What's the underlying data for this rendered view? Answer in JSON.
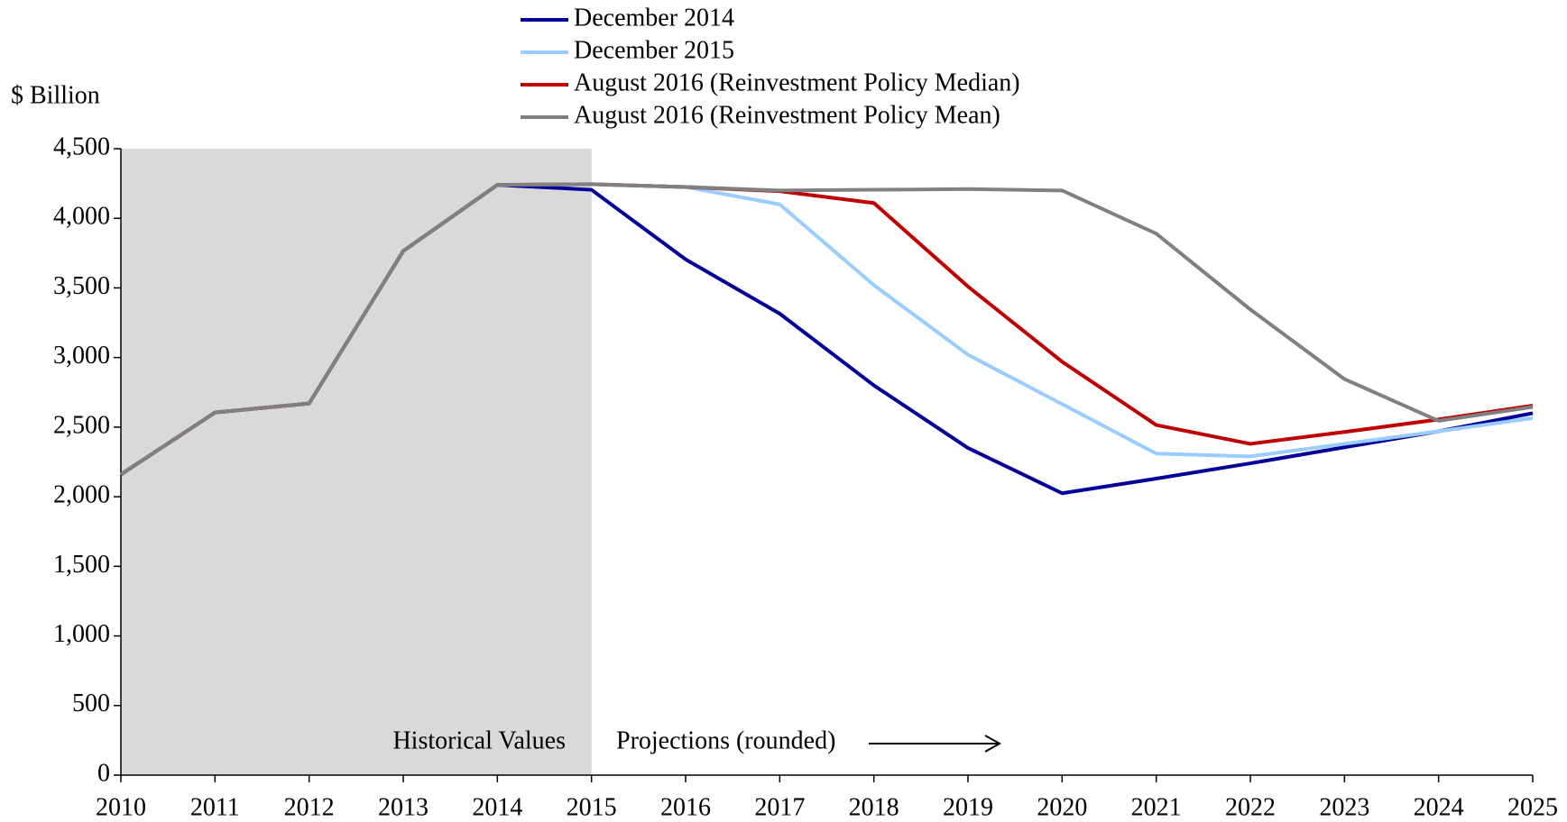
{
  "chart_data": {
    "type": "line",
    "y_label": "$ Billion",
    "annotations": [
      "Historical Values",
      "Projections (rounded)"
    ],
    "shaded_region": [
      2010,
      2015
    ],
    "x": [
      2010,
      2011,
      2012,
      2013,
      2014,
      2015,
      2016,
      2017,
      2018,
      2019,
      2020,
      2021,
      2022,
      2023,
      2024,
      2025
    ],
    "xlim": [
      2010,
      2025
    ],
    "xticks": [
      2010,
      2011,
      2012,
      2013,
      2014,
      2015,
      2016,
      2017,
      2018,
      2019,
      2020,
      2021,
      2022,
      2023,
      2024,
      2025
    ],
    "ylim": [
      0,
      4500
    ],
    "yticks": [
      0,
      500,
      {
        "value": 1000,
        "label": "1,000"
      },
      {
        "value": 1500,
        "label": "1,500"
      },
      {
        "value": 2000,
        "label": "2,000"
      },
      {
        "value": 2500,
        "label": "2,500"
      },
      {
        "value": 3000,
        "label": "3,000"
      },
      {
        "value": 3500,
        "label": "3,500"
      },
      {
        "value": 4000,
        "label": "4,000"
      },
      {
        "value": 4500,
        "label": "4,500"
      }
    ],
    "series": [
      {
        "name": "December 2014",
        "color": "#000099",
        "values": [
          2160,
          2605,
          2670,
          3765,
          4240,
          4205,
          3705,
          3315,
          2800,
          2350,
          2025,
          2130,
          2240,
          2355,
          2470,
          2600
        ]
      },
      {
        "name": "December 2015",
        "color": "#99ccff",
        "values": [
          2160,
          2605,
          2670,
          3765,
          4240,
          4245,
          4225,
          4100,
          3520,
          3020,
          2665,
          2310,
          2290,
          2380,
          2470,
          2565
        ]
      },
      {
        "name": "August 2016 (Reinvestment Policy Median)",
        "color": "#c00000",
        "values": [
          2160,
          2605,
          2670,
          3765,
          4240,
          4245,
          4225,
          4195,
          4110,
          3510,
          2970,
          2515,
          2380,
          2465,
          2555,
          2655
        ]
      },
      {
        "name": "August 2016 (Reinvestment Policy Mean)",
        "color": "#808080",
        "values": [
          2160,
          2605,
          2670,
          3765,
          4240,
          4245,
          4225,
          4200,
          4205,
          4210,
          4200,
          3890,
          3345,
          2845,
          2545,
          2645
        ]
      }
    ]
  }
}
